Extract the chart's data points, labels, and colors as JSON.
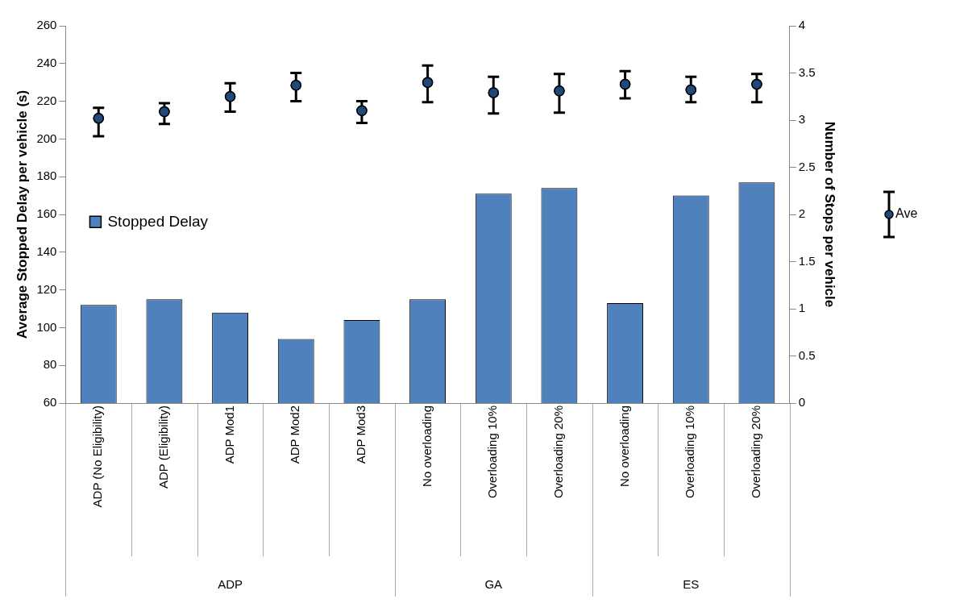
{
  "chart_data": {
    "type": "bar",
    "categories": [
      "ADP (No Eligibility)",
      "ADP (Eligibility)",
      "ADP Mod1",
      "ADP Mod2",
      "ADP Mod3",
      "No overloading",
      "Overloading 10%",
      "Overloading 20%",
      "No overloading",
      "Overloading 10%",
      "Overloading 20%"
    ],
    "series": [
      {
        "name": "Stopped Delay",
        "color": "#4f81bd",
        "values": [
          112,
          115,
          108,
          94,
          104,
          115,
          171,
          174,
          113,
          170,
          177
        ]
      },
      {
        "name": "Ave",
        "type": "scatter",
        "axis": "y2",
        "color": "#1f497d",
        "marker": "circle",
        "values": [
          3.02,
          3.09,
          3.25,
          3.37,
          3.1,
          3.4,
          3.29,
          3.31,
          3.38,
          3.32,
          3.38
        ],
        "errors": [
          [
            2.83,
            3.13
          ],
          [
            2.96,
            3.18
          ],
          [
            3.09,
            3.39
          ],
          [
            3.2,
            3.5
          ],
          [
            2.97,
            3.2
          ],
          [
            3.19,
            3.58
          ],
          [
            3.07,
            3.46
          ],
          [
            3.08,
            3.49
          ],
          [
            3.23,
            3.52
          ],
          [
            3.19,
            3.46
          ],
          [
            3.19,
            3.49
          ]
        ]
      }
    ],
    "ylabel": "Average Stopped Delay per vehicle (s)",
    "y2label": "Number of Stops per vehicle",
    "ylim": [
      60,
      260
    ],
    "yticks": [
      60,
      80,
      100,
      120,
      140,
      160,
      180,
      200,
      220,
      240,
      260
    ],
    "y2lim": [
      0,
      4
    ],
    "y2ticks": [
      0,
      0.5,
      1,
      1.5,
      2,
      2.5,
      3,
      3.5,
      4
    ],
    "annotations": [
      "ADP",
      "GA",
      "ES"
    ],
    "grid": false,
    "legend": "right"
  }
}
